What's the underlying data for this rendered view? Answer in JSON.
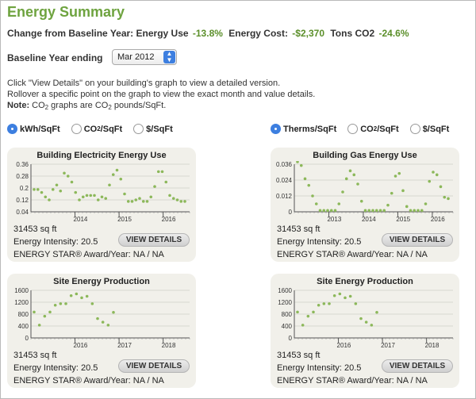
{
  "header": {
    "title": "Energy Summary",
    "change_label": "Change from Baseline Year:",
    "energy_use_label": "Energy Use",
    "energy_use_value": "-13.8%",
    "energy_cost_label": "Energy Cost:",
    "energy_cost_value": "-$2,370",
    "co2_label": "Tons CO2",
    "co2_value": "-24.6%"
  },
  "baseline": {
    "label": "Baseline Year ending",
    "selected": "Mar 2012"
  },
  "instructions": {
    "line1": "Click \"View Details\" on your building's graph to view a detailed version.",
    "line2": "Rollover a specific point on the graph to view the exact month and value details.",
    "note_label": "Note:",
    "note_pre": "CO",
    "note_sub": "2",
    "note_mid": " graphs are CO",
    "note_sub2": "2",
    "note_post": " pounds/SqFt."
  },
  "left_units": {
    "kwh": "kWh/SqFt",
    "co2_pre": "CO",
    "co2_sub": "2",
    "co2_post": "/SqFt",
    "dollar": "$/SqFt"
  },
  "right_units": {
    "therms": "Therms/SqFt",
    "co2_pre": "CO",
    "co2_sub": "2",
    "co2_post": "/SqFt",
    "dollar": "$/SqFt"
  },
  "common": {
    "sqft": "31453 sq ft",
    "intensity": "Energy Intensity: 20.5",
    "award": "ENERGY STAR® Award/Year: NA / NA",
    "button": "VIEW DETAILS"
  },
  "colors": {
    "accent": "#6ea33f",
    "point": "#8cb85a",
    "card": "#f1f0ea"
  },
  "chart_data": [
    {
      "type": "scatter",
      "title": "Building Electricity Energy Use",
      "ylim": [
        0.04,
        0.36
      ],
      "yticks": [
        "0.36",
        "0.28",
        "0.2",
        "0.12",
        "0.04"
      ],
      "xticks": [
        "2014",
        "2015",
        "2016"
      ],
      "values": [
        0.19,
        0.19,
        0.17,
        0.14,
        0.12,
        0.19,
        0.22,
        0.18,
        0.3,
        0.28,
        0.24,
        0.17,
        0.12,
        0.14,
        0.15,
        0.15,
        0.15,
        0.12,
        0.14,
        0.13,
        0.22,
        0.29,
        0.32,
        0.26,
        0.16,
        0.11,
        0.11,
        0.12,
        0.13,
        0.11,
        0.11,
        0.14,
        0.21,
        0.31,
        0.31,
        0.24,
        0.15,
        0.13,
        0.12,
        0.11,
        0.11
      ]
    },
    {
      "type": "scatter",
      "title": "Building Gas Energy Use",
      "ylim": [
        0,
        0.036
      ],
      "yticks": [
        "0.036",
        "0.024",
        "0.012",
        "0"
      ],
      "xticks": [
        "2013",
        "2014",
        "2015",
        "2016"
      ],
      "values": [
        0.038,
        0.035,
        0.025,
        0.02,
        0.012,
        0.006,
        0.001,
        0.001,
        0.001,
        0.001,
        0.001,
        0.006,
        0.015,
        0.025,
        0.031,
        0.028,
        0.021,
        0.008,
        0.001,
        0.001,
        0.001,
        0.001,
        0.001,
        0.001,
        0.005,
        0.014,
        0.027,
        0.029,
        0.016,
        0.004,
        0.001,
        0.001,
        0.001,
        0.001,
        0.006,
        0.023,
        0.03,
        0.028,
        0.019,
        0.011,
        0.01
      ]
    },
    {
      "type": "scatter",
      "title": "Site Energy Production",
      "ylim": [
        0,
        1600
      ],
      "yticks": [
        "1600",
        "1200",
        "800",
        "400",
        "0"
      ],
      "xticks": [
        "2016",
        "2017",
        "2018"
      ],
      "values": [
        870,
        430,
        730,
        870,
        1100,
        1150,
        1150,
        1420,
        1480,
        1350,
        1400,
        1150,
        650,
        530,
        430,
        860
      ]
    },
    {
      "type": "scatter",
      "title": "Site Energy Production",
      "ylim": [
        0,
        1600
      ],
      "yticks": [
        "1600",
        "1200",
        "800",
        "400",
        "0"
      ],
      "xticks": [
        "2016",
        "2017",
        "2018"
      ],
      "values": [
        870,
        430,
        730,
        870,
        1100,
        1150,
        1150,
        1420,
        1480,
        1350,
        1400,
        1150,
        650,
        530,
        430,
        860
      ]
    }
  ]
}
